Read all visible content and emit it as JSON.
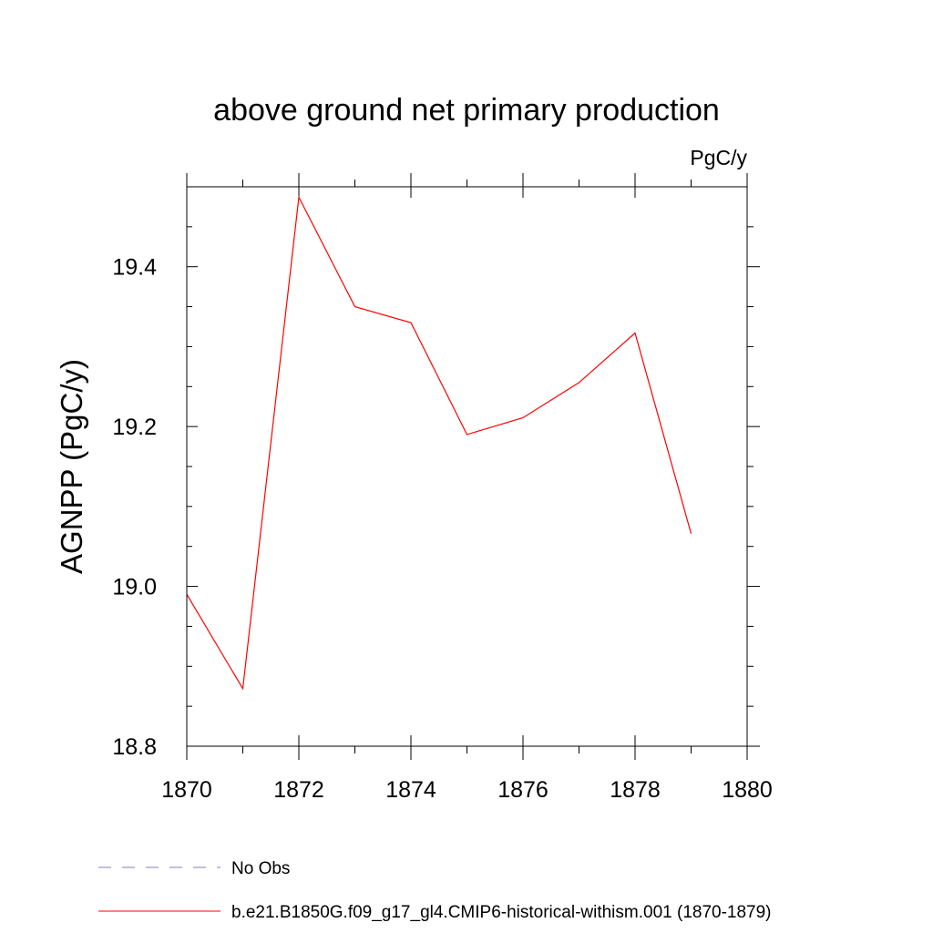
{
  "chart_data": {
    "type": "line",
    "title": "above ground net primary production",
    "units": "PgC/y",
    "ylabel": "AGNPP  (PgC/y)",
    "xlabel": "",
    "xlim": [
      1870,
      1880
    ],
    "ylim": [
      18.8,
      19.5
    ],
    "x_major_ticks": [
      1870,
      1872,
      1874,
      1876,
      1878,
      1880
    ],
    "x_tick_labels": [
      "1870",
      "1872",
      "1874",
      "1876",
      "1878",
      "1880"
    ],
    "x_minor_ticks": [
      1871,
      1873,
      1875,
      1877,
      1879
    ],
    "y_major_ticks": [
      18.8,
      19.0,
      19.2,
      19.4
    ],
    "y_tick_labels": [
      "18.8",
      "19.0",
      "19.2",
      "19.4"
    ],
    "y_minor_ticks": [
      18.85,
      18.9,
      18.95,
      19.05,
      19.1,
      19.15,
      19.25,
      19.3,
      19.35,
      19.45
    ],
    "grid": false,
    "legend_position": "bottom",
    "series": [
      {
        "name": "b.e21.B1850G.f09_g17_gl4.CMIP6-historical-withism.001 (1870-1879)",
        "color": "#ff0000",
        "style": "solid",
        "x": [
          1870,
          1871,
          1872,
          1873,
          1874,
          1875,
          1876,
          1877,
          1878,
          1879
        ],
        "y": [
          18.99,
          18.872,
          19.487,
          19.35,
          19.33,
          19.19,
          19.211,
          19.255,
          19.317,
          19.066
        ]
      }
    ],
    "legend": [
      {
        "label": "No Obs",
        "color": "#8080c0",
        "style": "dashed"
      },
      {
        "label": "b.e21.B1850G.f09_g17_gl4.CMIP6-historical-withism.001 (1870-1879)",
        "color": "#ff0000",
        "style": "solid"
      }
    ]
  }
}
